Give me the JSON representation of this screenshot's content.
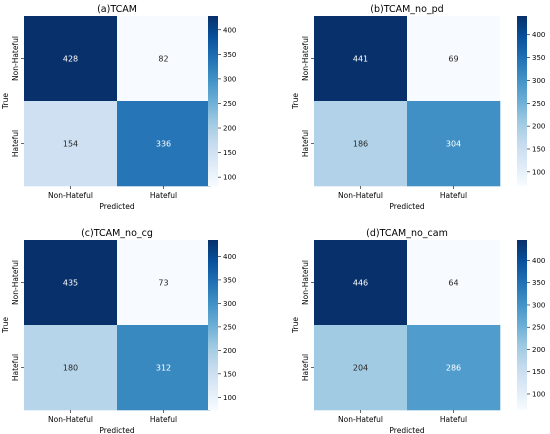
{
  "chart_data": [
    {
      "type": "heatmap",
      "title": "(a)TCAM",
      "xlabel": "Predicted",
      "ylabel": "True",
      "x_categories": [
        "Non-Hateful",
        "Hateful"
      ],
      "y_categories": [
        "Non-Hateful",
        "Hateful"
      ],
      "values": [
        [
          428,
          82
        ],
        [
          154,
          336
        ]
      ],
      "colorbar": {
        "min": 82,
        "max": 428,
        "ticks": [
          100,
          150,
          200,
          250,
          300,
          350,
          400
        ]
      }
    },
    {
      "type": "heatmap",
      "title": "(b)TCAM_no_pd",
      "xlabel": "Predicted",
      "ylabel": "True",
      "x_categories": [
        "Non-Hateful",
        "Hateful"
      ],
      "y_categories": [
        "Non-Hateful",
        "Hateful"
      ],
      "values": [
        [
          441,
          69
        ],
        [
          186,
          304
        ]
      ],
      "colorbar": {
        "min": 69,
        "max": 441,
        "ticks": [
          100,
          150,
          200,
          250,
          300,
          350,
          400
        ]
      }
    },
    {
      "type": "heatmap",
      "title": "(c)TCAM_no_cg",
      "xlabel": "Predicted",
      "ylabel": "True",
      "x_categories": [
        "Non-Hateful",
        "Hateful"
      ],
      "y_categories": [
        "Non-Hateful",
        "Hateful"
      ],
      "values": [
        [
          435,
          73
        ],
        [
          180,
          312
        ]
      ],
      "colorbar": {
        "min": 73,
        "max": 435,
        "ticks": [
          100,
          150,
          200,
          250,
          300,
          350,
          400
        ]
      }
    },
    {
      "type": "heatmap",
      "title": "(d)TCAM_no_cam",
      "xlabel": "Predicted",
      "ylabel": "True",
      "x_categories": [
        "Non-Hateful",
        "Hateful"
      ],
      "y_categories": [
        "Non-Hateful",
        "Hateful"
      ],
      "values": [
        [
          446,
          64
        ],
        [
          204,
          286
        ]
      ],
      "colorbar": {
        "min": 64,
        "max": 446,
        "ticks": [
          100,
          150,
          200,
          250,
          300,
          350,
          400
        ]
      }
    }
  ],
  "colors": {
    "scale": [
      "#f7fbff",
      "#deebf7",
      "#c6dbef",
      "#9ecae1",
      "#6baed6",
      "#4292c6",
      "#2171b5",
      "#08519c",
      "#08306b"
    ],
    "text_light": "#ffffff",
    "text_dark": "#262626"
  }
}
